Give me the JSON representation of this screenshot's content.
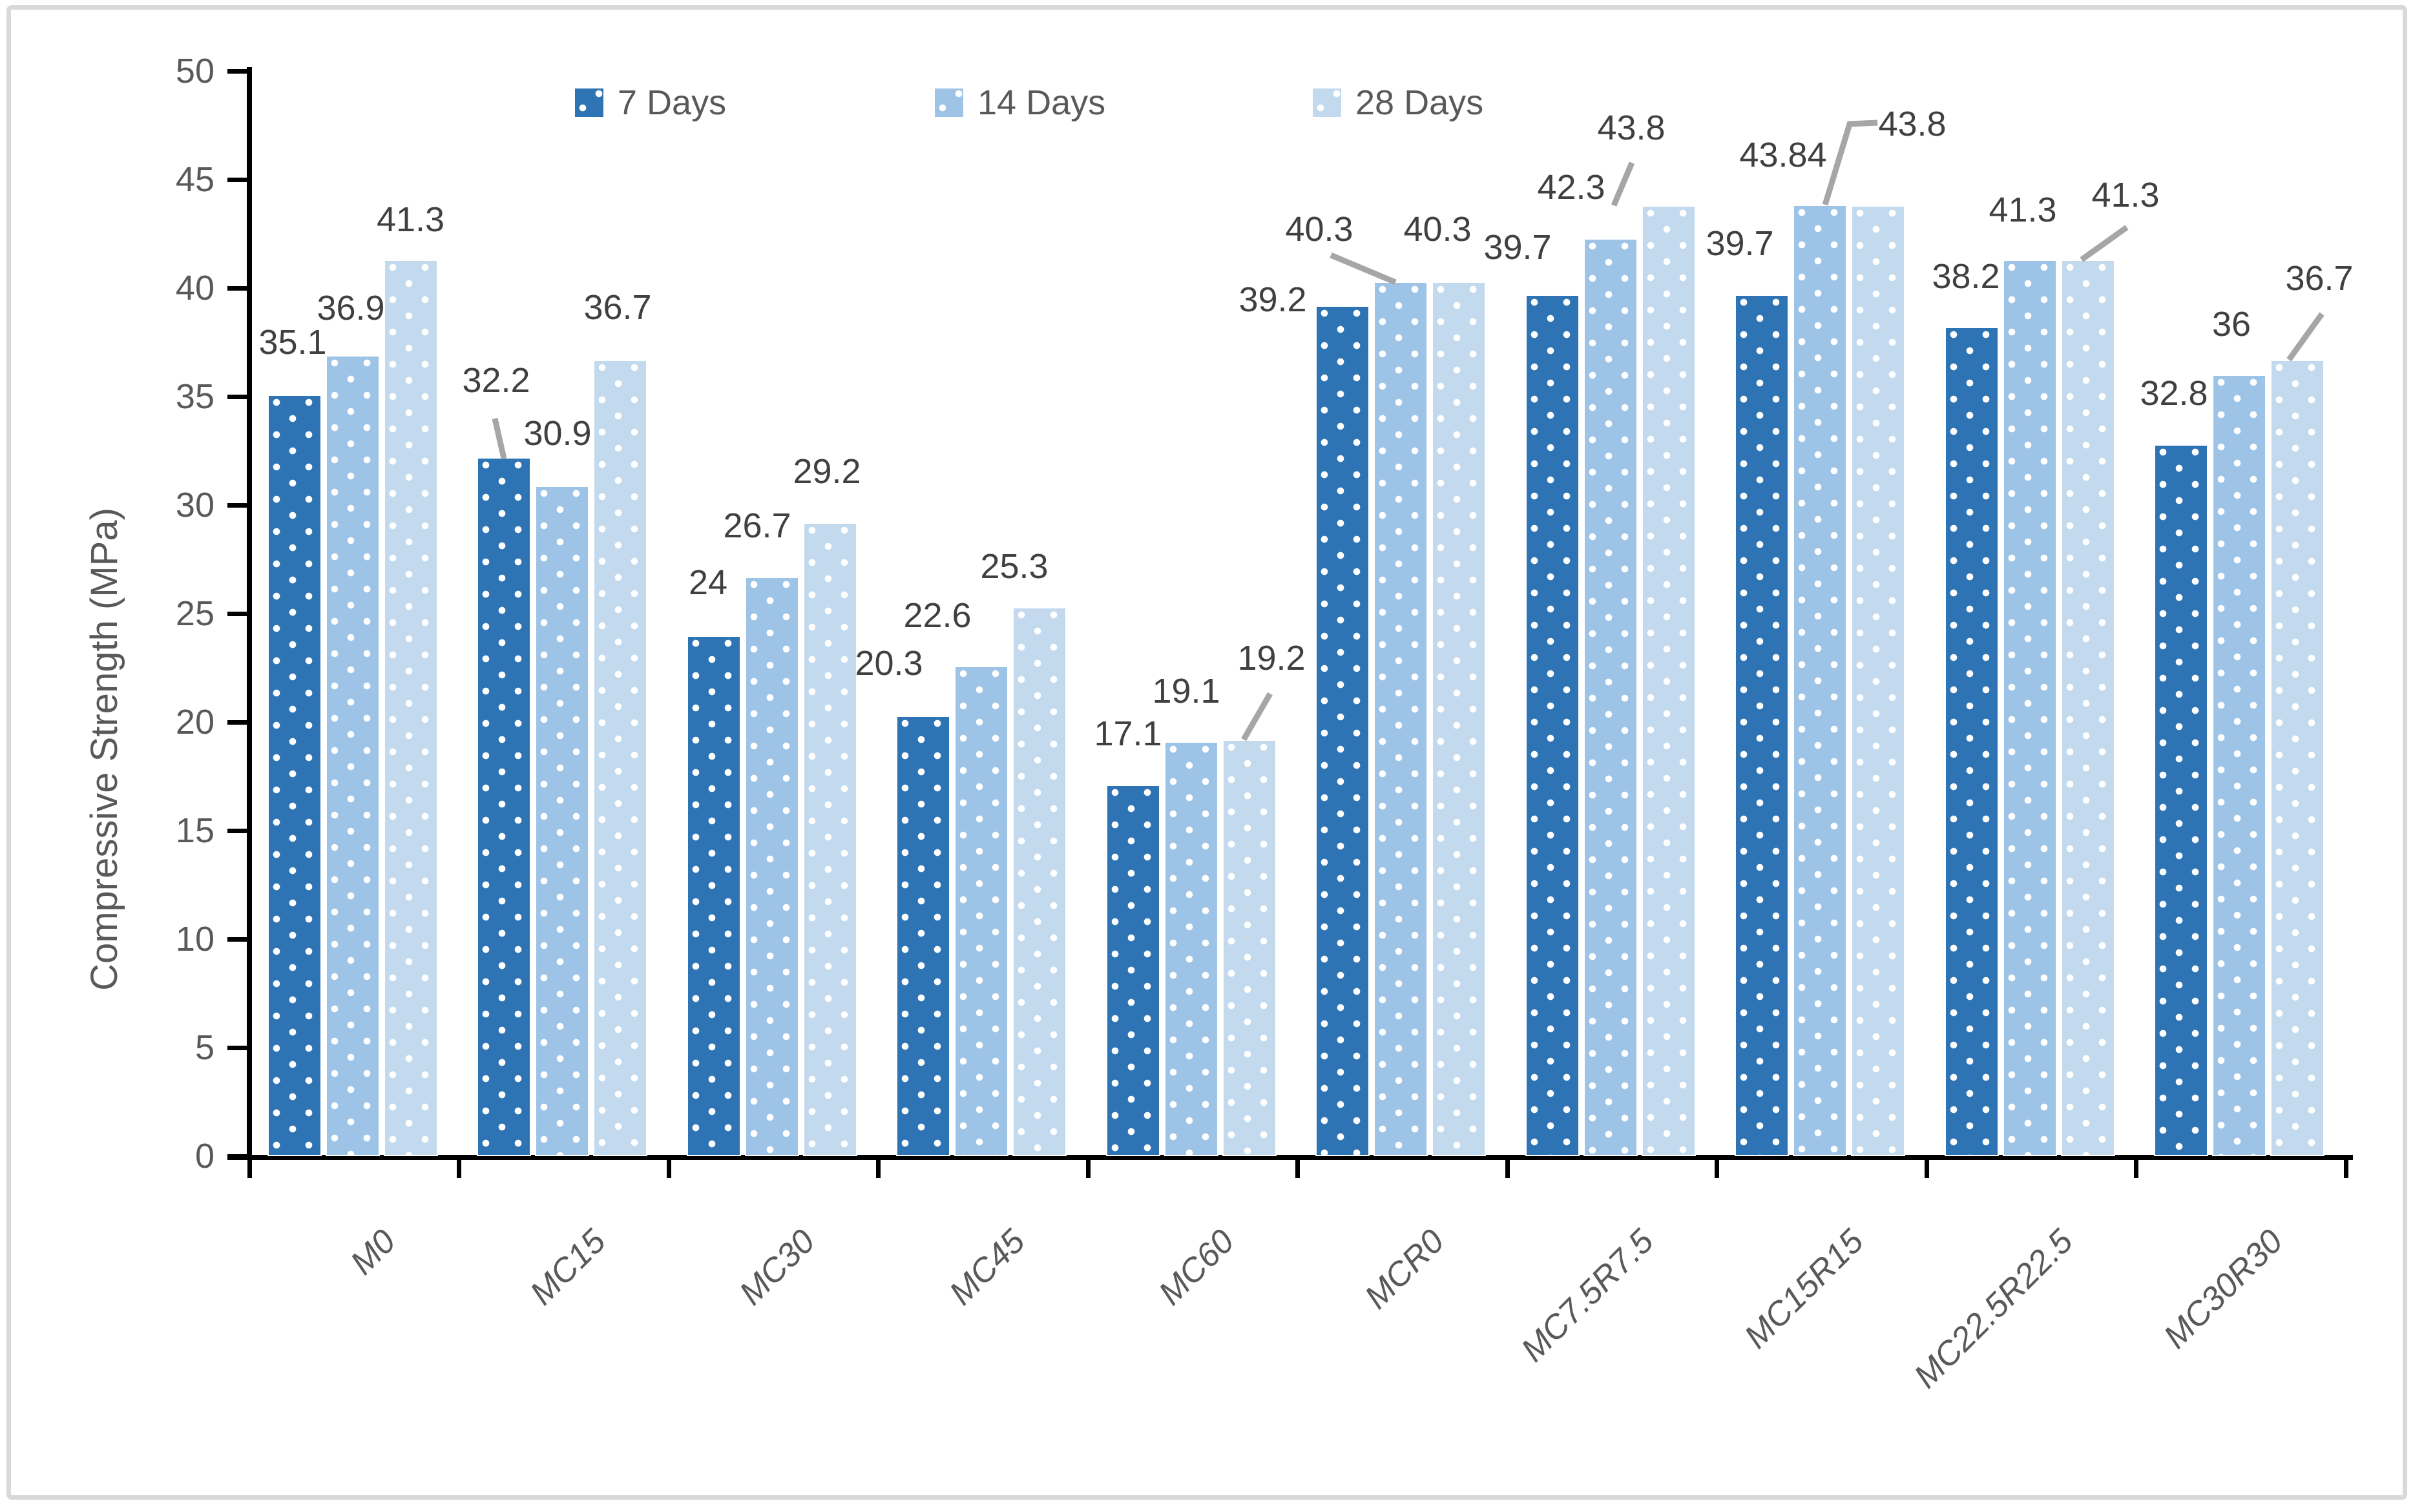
{
  "chart_data": {
    "type": "bar",
    "title": "",
    "xlabel": "",
    "ylabel": "Compressive Strength (MPa)",
    "ylim": [
      0,
      50
    ],
    "ytick_step": 5,
    "yticks": [
      "0",
      "5",
      "10",
      "15",
      "20",
      "25",
      "30",
      "35",
      "40",
      "45",
      "50"
    ],
    "grid": false,
    "legend_position": "top-center",
    "categories": [
      "M0",
      "MC15",
      "MC30",
      "MC45",
      "MC60",
      "MCR0",
      "MC7.5R7.5",
      "MC15R15",
      "MC22.5R22.5",
      "MC30R30"
    ],
    "series": [
      {
        "name": "7 Days",
        "color": "#2E74B5",
        "values": [
          35.1,
          32.2,
          24,
          20.3,
          17.1,
          39.2,
          39.7,
          39.7,
          38.2,
          32.8
        ],
        "labels": [
          "35.1",
          "32.2",
          "24",
          "20.3",
          "17.1",
          "39.2",
          "39.7",
          "39.7",
          "38.2",
          "32.8"
        ]
      },
      {
        "name": "14 Days",
        "color": "#9DC3E6",
        "values": [
          36.9,
          30.9,
          26.7,
          22.6,
          19.1,
          40.3,
          42.3,
          43.84,
          41.3,
          36
        ],
        "labels": [
          "36.9",
          "30.9",
          "26.7",
          "22.6",
          "19.1",
          "40.3",
          "42.3",
          "43.84",
          "41.3",
          "36"
        ]
      },
      {
        "name": "28 Days",
        "color": "#C3D9EE",
        "values": [
          41.3,
          36.7,
          29.2,
          25.3,
          19.2,
          40.3,
          43.8,
          43.8,
          41.3,
          36.7
        ],
        "labels": [
          "41.3",
          "36.7",
          "29.2",
          "25.3",
          "19.2",
          "40.3",
          "43.8",
          "43.8",
          "41.3",
          "36.7"
        ]
      }
    ],
    "colors": {
      "data_label": "#404040",
      "axis_text": "#595959",
      "axis_line": "#000000",
      "leader_line": "#A6A6A6",
      "frame_border": "#D9D9D9",
      "background": "#FFFFFF"
    }
  }
}
